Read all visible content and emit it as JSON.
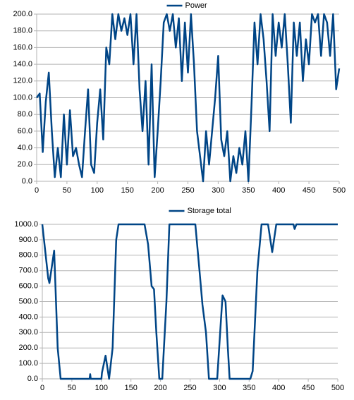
{
  "chart_data": [
    {
      "type": "line",
      "legend": "top",
      "x": [
        0,
        5,
        10,
        15,
        20,
        25,
        30,
        35,
        40,
        45,
        50,
        55,
        60,
        65,
        70,
        75,
        80,
        85,
        90,
        95,
        100,
        105,
        110,
        115,
        120,
        125,
        130,
        135,
        140,
        145,
        150,
        155,
        160,
        165,
        170,
        175,
        180,
        185,
        190,
        195,
        200,
        205,
        210,
        215,
        220,
        225,
        230,
        235,
        240,
        245,
        250,
        255,
        260,
        265,
        270,
        275,
        280,
        285,
        290,
        295,
        300,
        305,
        310,
        315,
        320,
        325,
        330,
        335,
        340,
        345,
        350,
        355,
        360,
        365,
        370,
        375,
        380,
        385,
        390,
        395,
        400,
        405,
        410,
        415,
        420,
        425,
        430,
        435,
        440,
        445,
        450,
        455,
        460,
        465,
        470,
        475,
        480,
        485,
        490,
        495,
        500
      ],
      "series": [
        {
          "name": "Power",
          "color": "#004586",
          "values": [
            100,
            105,
            35,
            95,
            130,
            60,
            5,
            40,
            5,
            80,
            20,
            85,
            30,
            40,
            20,
            5,
            60,
            110,
            20,
            10,
            70,
            110,
            50,
            160,
            140,
            200,
            170,
            200,
            180,
            195,
            175,
            200,
            140,
            200,
            110,
            60,
            120,
            20,
            140,
            5,
            60,
            120,
            190,
            200,
            180,
            200,
            160,
            195,
            120,
            190,
            130,
            200,
            140,
            60,
            30,
            0,
            60,
            20,
            60,
            100,
            150,
            50,
            30,
            60,
            0,
            30,
            10,
            40,
            20,
            60,
            0,
            90,
            190,
            140,
            200,
            170,
            120,
            60,
            200,
            150,
            190,
            160,
            200,
            140,
            70,
            190,
            150,
            190,
            120,
            170,
            140,
            200,
            190,
            200,
            150,
            200,
            190,
            150,
            200,
            110,
            135
          ]
        }
      ],
      "xlim": [
        0,
        500
      ],
      "xticks": [
        0,
        50,
        100,
        150,
        200,
        250,
        300,
        350,
        400,
        450,
        500
      ],
      "ylim": [
        0,
        200
      ],
      "yticks": [
        {
          "value": 0,
          "label": "0.0"
        },
        {
          "value": 20,
          "label": "20.0"
        },
        {
          "value": 40,
          "label": "40.0"
        },
        {
          "value": 60,
          "label": "60.0"
        },
        {
          "value": 80,
          "label": "80.0"
        },
        {
          "value": 100,
          "label": "100.0"
        },
        {
          "value": 120,
          "label": "120.0"
        },
        {
          "value": 140,
          "label": "140.0"
        },
        {
          "value": 160,
          "label": "160.0"
        },
        {
          "value": 180,
          "label": "180.0"
        },
        {
          "value": 200,
          "label": "200.0"
        }
      ],
      "grid": true
    },
    {
      "type": "line",
      "legend": "top",
      "x": [
        0,
        10,
        12,
        20,
        26,
        31,
        80,
        81,
        82,
        100,
        101,
        107,
        113,
        119,
        125,
        129,
        173,
        179,
        185,
        189,
        193,
        198,
        203,
        210,
        215,
        259,
        266,
        271,
        277,
        282,
        296,
        301,
        305,
        310,
        314,
        317,
        352,
        356,
        364,
        371,
        382,
        389,
        396,
        425,
        427,
        430,
        500
      ],
      "series": [
        {
          "name": "Storage total",
          "color": "#004586",
          "values": [
            1000,
            650,
            620,
            830,
            200,
            0,
            0,
            30,
            0,
            0,
            40,
            150,
            0,
            200,
            900,
            1000,
            1000,
            870,
            600,
            580,
            300,
            0,
            0,
            500,
            1000,
            1000,
            700,
            480,
            300,
            0,
            0,
            300,
            540,
            500,
            200,
            0,
            0,
            50,
            700,
            1000,
            1000,
            820,
            1000,
            1000,
            970,
            1000,
            1000
          ]
        }
      ],
      "xlim": [
        0,
        500
      ],
      "xticks": [
        0,
        50,
        100,
        150,
        200,
        250,
        300,
        350,
        400,
        450,
        500
      ],
      "ylim": [
        0,
        1000
      ],
      "yticks": [
        {
          "value": 0,
          "label": "0.0"
        },
        {
          "value": 100,
          "label": "100.0"
        },
        {
          "value": 200,
          "label": "200.0"
        },
        {
          "value": 300,
          "label": "300.0"
        },
        {
          "value": 400,
          "label": "400.0"
        },
        {
          "value": 500,
          "label": "500.0"
        },
        {
          "value": 600,
          "label": "600.0"
        },
        {
          "value": 700,
          "label": "700.0"
        },
        {
          "value": 800,
          "label": "800.0"
        },
        {
          "value": 900,
          "label": "900.0"
        },
        {
          "value": 1000,
          "label": "1000.0"
        }
      ],
      "grid": true
    }
  ]
}
